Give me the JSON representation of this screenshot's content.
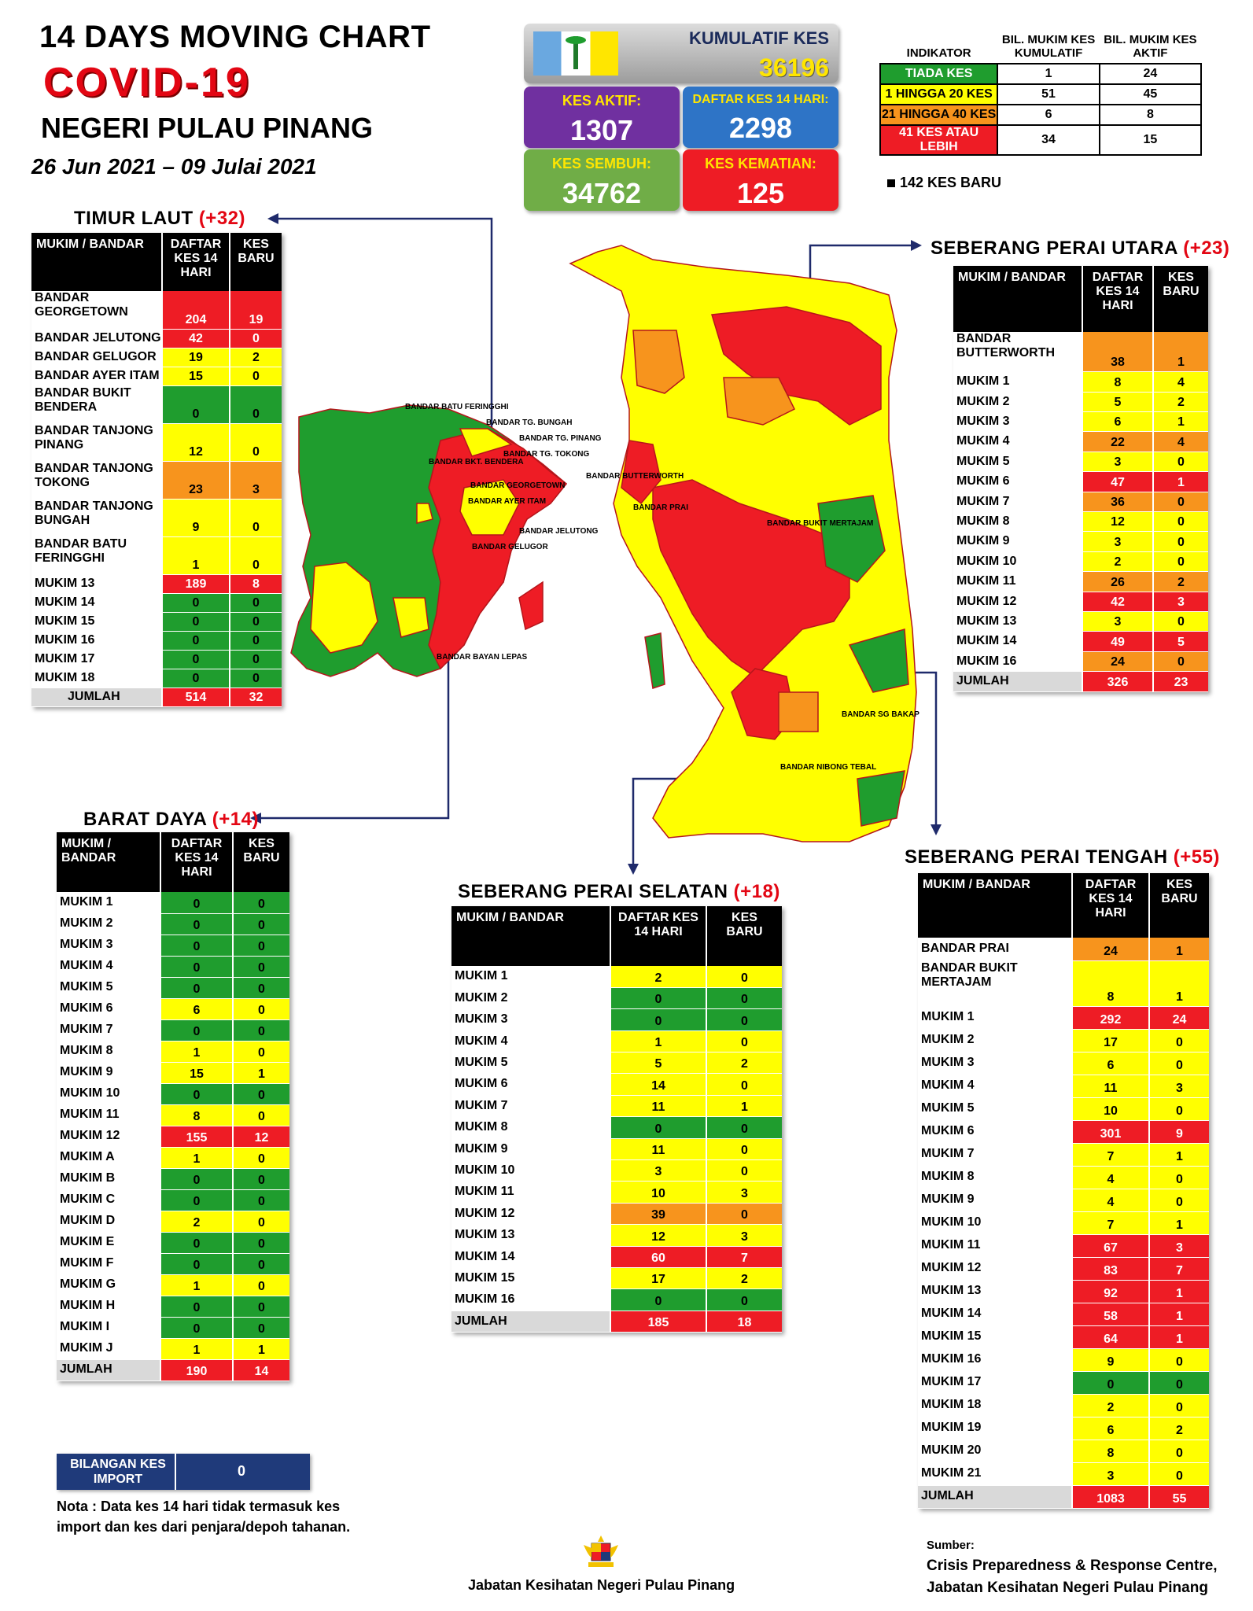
{
  "header": {
    "line1": "14  DAYS MOVING CHART",
    "line2": "COVID-19",
    "line3": "NEGERI PULAU PINANG",
    "dates": "26 Jun 2021 – 09 Julai 2021"
  },
  "stats": {
    "kumulatif_label": "KUMULATIF KES",
    "kumulatif_value": "36196",
    "aktif_label": "KES AKTIF:",
    "aktif_value": "1307",
    "daftar_label": "DAFTAR KES 14 HARI:",
    "daftar_value": "2298",
    "sembuh_label": "KES SEMBUH:",
    "sembuh_value": "34762",
    "kematian_label": "KES KEMATIAN:",
    "kematian_value": "125"
  },
  "indicator": {
    "headers": [
      "INDIKATOR",
      "BIL. MUKIM KES KUMULATIF",
      "BIL. MUKIM KES AKTIF"
    ],
    "rows": [
      {
        "label": "TIADA KES",
        "cum": "1",
        "act": "24",
        "color": "#1f9d2e"
      },
      {
        "label": "1 HINGGA 20 KES",
        "cum": "51",
        "act": "45",
        "color": "#ffff00"
      },
      {
        "label": "21 HINGGA 40 KES",
        "cum": "6",
        "act": "8",
        "color": "#f7941d"
      },
      {
        "label": "41 KES ATAU LEBIH",
        "cum": "34",
        "act": "15",
        "color": "#ee1c25"
      }
    ],
    "new_cases": "142 KES BARU"
  },
  "districts": {
    "timur_laut": {
      "title": "TIMUR LAUT",
      "plus": "(+32)",
      "headers": [
        "MUKIM / BANDAR",
        "DAFTAR KES 14 HARI",
        "KES BARU"
      ],
      "rows": [
        {
          "n": "BANDAR GEORGETOWN",
          "d": "204",
          "b": "19",
          "cd": "R",
          "cb": "R",
          "h": 2
        },
        {
          "n": "BANDAR JELUTONG",
          "d": "42",
          "b": "0",
          "cd": "R",
          "cb": "R",
          "h": 1
        },
        {
          "n": "BANDAR GELUGOR",
          "d": "19",
          "b": "2",
          "cd": "Y",
          "cb": "Y",
          "h": 1
        },
        {
          "n": "BANDAR AYER ITAM",
          "d": "15",
          "b": "0",
          "cd": "Y",
          "cb": "Y",
          "h": 1
        },
        {
          "n": "BANDAR BUKIT BENDERA",
          "d": "0",
          "b": "0",
          "cd": "G",
          "cb": "G",
          "h": 2
        },
        {
          "n": "BANDAR TANJONG PINANG",
          "d": "12",
          "b": "0",
          "cd": "Y",
          "cb": "Y",
          "h": 2
        },
        {
          "n": "BANDAR TANJONG TOKONG",
          "d": "23",
          "b": "3",
          "cd": "O",
          "cb": "O",
          "h": 2
        },
        {
          "n": "BANDAR TANJONG BUNGAH",
          "d": "9",
          "b": "0",
          "cd": "Y",
          "cb": "Y",
          "h": 2
        },
        {
          "n": "BANDAR BATU FERINGGHI",
          "d": "1",
          "b": "0",
          "cd": "Y",
          "cb": "Y",
          "h": 2
        },
        {
          "n": "MUKIM 13",
          "d": "189",
          "b": "8",
          "cd": "R",
          "cb": "R",
          "h": 1
        },
        {
          "n": "MUKIM 14",
          "d": "0",
          "b": "0",
          "cd": "G",
          "cb": "G",
          "h": 1
        },
        {
          "n": "MUKIM 15",
          "d": "0",
          "b": "0",
          "cd": "G",
          "cb": "G",
          "h": 1
        },
        {
          "n": "MUKIM 16",
          "d": "0",
          "b": "0",
          "cd": "G",
          "cb": "G",
          "h": 1
        },
        {
          "n": "MUKIM 17",
          "d": "0",
          "b": "0",
          "cd": "G",
          "cb": "G",
          "h": 1
        },
        {
          "n": "MUKIM 18",
          "d": "0",
          "b": "0",
          "cd": "G",
          "cb": "G",
          "h": 1
        }
      ],
      "total": {
        "n": "JUMLAH",
        "d": "514",
        "b": "32"
      }
    },
    "spu": {
      "title": "SEBERANG PERAI UTARA",
      "plus": "(+23)",
      "headers": [
        "MUKIM / BANDAR",
        "DAFTAR KES 14 HARI",
        "KES BARU"
      ],
      "rows": [
        {
          "n": "BANDAR BUTTERWORTH",
          "d": "38",
          "b": "1",
          "cd": "O",
          "cb": "O",
          "h": 2
        },
        {
          "n": "MUKIM 1",
          "d": "8",
          "b": "4",
          "cd": "Y",
          "cb": "Y",
          "h": 1
        },
        {
          "n": "MUKIM 2",
          "d": "5",
          "b": "2",
          "cd": "Y",
          "cb": "Y",
          "h": 1
        },
        {
          "n": "MUKIM 3",
          "d": "6",
          "b": "1",
          "cd": "Y",
          "cb": "Y",
          "h": 1
        },
        {
          "n": "MUKIM 4",
          "d": "22",
          "b": "4",
          "cd": "O",
          "cb": "O",
          "h": 1
        },
        {
          "n": "MUKIM 5",
          "d": "3",
          "b": "0",
          "cd": "Y",
          "cb": "Y",
          "h": 1
        },
        {
          "n": "MUKIM 6",
          "d": "47",
          "b": "1",
          "cd": "R",
          "cb": "R",
          "h": 1
        },
        {
          "n": "MUKIM 7",
          "d": "36",
          "b": "0",
          "cd": "O",
          "cb": "O",
          "h": 1
        },
        {
          "n": "MUKIM 8",
          "d": "12",
          "b": "0",
          "cd": "Y",
          "cb": "Y",
          "h": 1
        },
        {
          "n": "MUKIM 9",
          "d": "3",
          "b": "0",
          "cd": "Y",
          "cb": "Y",
          "h": 1
        },
        {
          "n": "MUKIM 10",
          "d": "2",
          "b": "0",
          "cd": "Y",
          "cb": "Y",
          "h": 1
        },
        {
          "n": "MUKIM 11",
          "d": "26",
          "b": "2",
          "cd": "O",
          "cb": "O",
          "h": 1
        },
        {
          "n": "MUKIM 12",
          "d": "42",
          "b": "3",
          "cd": "R",
          "cb": "R",
          "h": 1
        },
        {
          "n": "MUKIM 13",
          "d": "3",
          "b": "0",
          "cd": "Y",
          "cb": "Y",
          "h": 1
        },
        {
          "n": "MUKIM 14",
          "d": "49",
          "b": "5",
          "cd": "R",
          "cb": "R",
          "h": 1
        },
        {
          "n": "MUKIM 16",
          "d": "24",
          "b": "0",
          "cd": "O",
          "cb": "O",
          "h": 1
        }
      ],
      "total": {
        "n": "JUMLAH",
        "d": "326",
        "b": "23"
      }
    },
    "barat_daya": {
      "title": "BARAT DAYA",
      "plus": "(+14)",
      "headers": [
        "MUKIM / BANDAR",
        "DAFTAR KES 14 HARI",
        "KES BARU"
      ],
      "rows": [
        {
          "n": "MUKIM 1",
          "d": "0",
          "b": "0",
          "cd": "G",
          "cb": "G",
          "h": 1
        },
        {
          "n": "MUKIM 2",
          "d": "0",
          "b": "0",
          "cd": "G",
          "cb": "G",
          "h": 1
        },
        {
          "n": "MUKIM 3",
          "d": "0",
          "b": "0",
          "cd": "G",
          "cb": "G",
          "h": 1
        },
        {
          "n": "MUKIM 4",
          "d": "0",
          "b": "0",
          "cd": "G",
          "cb": "G",
          "h": 1
        },
        {
          "n": "MUKIM 5",
          "d": "0",
          "b": "0",
          "cd": "G",
          "cb": "G",
          "h": 1
        },
        {
          "n": "MUKIM 6",
          "d": "6",
          "b": "0",
          "cd": "Y",
          "cb": "Y",
          "h": 1
        },
        {
          "n": "MUKIM 7",
          "d": "0",
          "b": "0",
          "cd": "G",
          "cb": "G",
          "h": 1
        },
        {
          "n": "MUKIM 8",
          "d": "1",
          "b": "0",
          "cd": "Y",
          "cb": "Y",
          "h": 1
        },
        {
          "n": "MUKIM 9",
          "d": "15",
          "b": "1",
          "cd": "Y",
          "cb": "Y",
          "h": 1
        },
        {
          "n": "MUKIM 10",
          "d": "0",
          "b": "0",
          "cd": "G",
          "cb": "G",
          "h": 1
        },
        {
          "n": "MUKIM 11",
          "d": "8",
          "b": "0",
          "cd": "Y",
          "cb": "Y",
          "h": 1
        },
        {
          "n": "MUKIM 12",
          "d": "155",
          "b": "12",
          "cd": "R",
          "cb": "R",
          "h": 1
        },
        {
          "n": "MUKIM A",
          "d": "1",
          "b": "0",
          "cd": "Y",
          "cb": "Y",
          "h": 1
        },
        {
          "n": "MUKIM B",
          "d": "0",
          "b": "0",
          "cd": "G",
          "cb": "G",
          "h": 1
        },
        {
          "n": "MUKIM C",
          "d": "0",
          "b": "0",
          "cd": "G",
          "cb": "G",
          "h": 1
        },
        {
          "n": "MUKIM D",
          "d": "2",
          "b": "0",
          "cd": "Y",
          "cb": "Y",
          "h": 1
        },
        {
          "n": "MUKIM E",
          "d": "0",
          "b": "0",
          "cd": "G",
          "cb": "G",
          "h": 1
        },
        {
          "n": "MUKIM F",
          "d": "0",
          "b": "0",
          "cd": "G",
          "cb": "G",
          "h": 1
        },
        {
          "n": "MUKIM G",
          "d": "1",
          "b": "0",
          "cd": "Y",
          "cb": "Y",
          "h": 1
        },
        {
          "n": "MUKIM H",
          "d": "0",
          "b": "0",
          "cd": "G",
          "cb": "G",
          "h": 1
        },
        {
          "n": "MUKIM I",
          "d": "0",
          "b": "0",
          "cd": "G",
          "cb": "G",
          "h": 1
        },
        {
          "n": "MUKIM J",
          "d": "1",
          "b": "1",
          "cd": "Y",
          "cb": "Y",
          "h": 1
        }
      ],
      "total": {
        "n": "JUMLAH",
        "d": "190",
        "b": "14"
      }
    },
    "sps": {
      "title": "SEBERANG PERAI SELATAN",
      "plus": "(+18)",
      "headers": [
        "MUKIM / BANDAR",
        "DAFTAR KES 14 HARI",
        "KES BARU"
      ],
      "rows": [
        {
          "n": "MUKIM 1",
          "d": "2",
          "b": "0",
          "cd": "Y",
          "cb": "Y",
          "h": 1
        },
        {
          "n": "MUKIM 2",
          "d": "0",
          "b": "0",
          "cd": "G",
          "cb": "G",
          "h": 1
        },
        {
          "n": "MUKIM 3",
          "d": "0",
          "b": "0",
          "cd": "G",
          "cb": "G",
          "h": 1
        },
        {
          "n": "MUKIM 4",
          "d": "1",
          "b": "0",
          "cd": "Y",
          "cb": "Y",
          "h": 1
        },
        {
          "n": "MUKIM 5",
          "d": "5",
          "b": "2",
          "cd": "Y",
          "cb": "Y",
          "h": 1
        },
        {
          "n": "MUKIM 6",
          "d": "14",
          "b": "0",
          "cd": "Y",
          "cb": "Y",
          "h": 1
        },
        {
          "n": "MUKIM 7",
          "d": "11",
          "b": "1",
          "cd": "Y",
          "cb": "Y",
          "h": 1
        },
        {
          "n": "MUKIM 8",
          "d": "0",
          "b": "0",
          "cd": "G",
          "cb": "G",
          "h": 1
        },
        {
          "n": "MUKIM 9",
          "d": "11",
          "b": "0",
          "cd": "Y",
          "cb": "Y",
          "h": 1
        },
        {
          "n": "MUKIM 10",
          "d": "3",
          "b": "0",
          "cd": "Y",
          "cb": "Y",
          "h": 1
        },
        {
          "n": "MUKIM 11",
          "d": "10",
          "b": "3",
          "cd": "Y",
          "cb": "Y",
          "h": 1
        },
        {
          "n": "MUKIM 12",
          "d": "39",
          "b": "0",
          "cd": "O",
          "cb": "O",
          "h": 1
        },
        {
          "n": "MUKIM 13",
          "d": "12",
          "b": "3",
          "cd": "Y",
          "cb": "Y",
          "h": 1
        },
        {
          "n": "MUKIM 14",
          "d": "60",
          "b": "7",
          "cd": "R",
          "cb": "R",
          "h": 1
        },
        {
          "n": "MUKIM 15",
          "d": "17",
          "b": "2",
          "cd": "Y",
          "cb": "Y",
          "h": 1
        },
        {
          "n": "MUKIM 16",
          "d": "0",
          "b": "0",
          "cd": "G",
          "cb": "G",
          "h": 1
        }
      ],
      "total": {
        "n": "JUMLAH",
        "d": "185",
        "b": "18"
      }
    },
    "spt": {
      "title": "SEBERANG PERAI TENGAH",
      "plus": "(+55)",
      "headers": [
        "MUKIM / BANDAR",
        "DAFTAR KES 14 HARI",
        "KES BARU"
      ],
      "rows": [
        {
          "n": "BANDAR PRAI",
          "d": "24",
          "b": "1",
          "cd": "O",
          "cb": "O",
          "h": 1
        },
        {
          "n": "BANDAR BUKIT MERTAJAM",
          "d": "8",
          "b": "1",
          "cd": "Y",
          "cb": "Y",
          "h": 2
        },
        {
          "n": "MUKIM 1",
          "d": "292",
          "b": "24",
          "cd": "R",
          "cb": "R",
          "h": 1
        },
        {
          "n": "MUKIM 2",
          "d": "17",
          "b": "0",
          "cd": "Y",
          "cb": "Y",
          "h": 1
        },
        {
          "n": "MUKIM 3",
          "d": "6",
          "b": "0",
          "cd": "Y",
          "cb": "Y",
          "h": 1
        },
        {
          "n": "MUKIM 4",
          "d": "11",
          "b": "3",
          "cd": "Y",
          "cb": "Y",
          "h": 1
        },
        {
          "n": "MUKIM 5",
          "d": "10",
          "b": "0",
          "cd": "Y",
          "cb": "Y",
          "h": 1
        },
        {
          "n": "MUKIM 6",
          "d": "301",
          "b": "9",
          "cd": "R",
          "cb": "R",
          "h": 1
        },
        {
          "n": "MUKIM 7",
          "d": "7",
          "b": "1",
          "cd": "Y",
          "cb": "Y",
          "h": 1
        },
        {
          "n": "MUKIM 8",
          "d": "4",
          "b": "0",
          "cd": "Y",
          "cb": "Y",
          "h": 1
        },
        {
          "n": "MUKIM 9",
          "d": "4",
          "b": "0",
          "cd": "Y",
          "cb": "Y",
          "h": 1
        },
        {
          "n": "MUKIM 10",
          "d": "7",
          "b": "1",
          "cd": "Y",
          "cb": "Y",
          "h": 1
        },
        {
          "n": "MUKIM 11",
          "d": "67",
          "b": "3",
          "cd": "R",
          "cb": "R",
          "h": 1
        },
        {
          "n": "MUKIM 12",
          "d": "83",
          "b": "7",
          "cd": "R",
          "cb": "R",
          "h": 1
        },
        {
          "n": "MUKIM 13",
          "d": "92",
          "b": "1",
          "cd": "R",
          "cb": "R",
          "h": 1
        },
        {
          "n": "MUKIM 14",
          "d": "58",
          "b": "1",
          "cd": "R",
          "cb": "R",
          "h": 1
        },
        {
          "n": "MUKIM 15",
          "d": "64",
          "b": "1",
          "cd": "R",
          "cb": "R",
          "h": 1
        },
        {
          "n": "MUKIM 16",
          "d": "9",
          "b": "0",
          "cd": "Y",
          "cb": "Y",
          "h": 1
        },
        {
          "n": "MUKIM 17",
          "d": "0",
          "b": "0",
          "cd": "G",
          "cb": "G",
          "h": 1
        },
        {
          "n": "MUKIM 18",
          "d": "2",
          "b": "0",
          "cd": "Y",
          "cb": "Y",
          "h": 1
        },
        {
          "n": "MUKIM 19",
          "d": "6",
          "b": "2",
          "cd": "Y",
          "cb": "Y",
          "h": 1
        },
        {
          "n": "MUKIM 20",
          "d": "8",
          "b": "0",
          "cd": "Y",
          "cb": "Y",
          "h": 1
        },
        {
          "n": "MUKIM 21",
          "d": "3",
          "b": "0",
          "cd": "Y",
          "cb": "Y",
          "h": 1
        }
      ],
      "total": {
        "n": "JUMLAH",
        "d": "1083",
        "b": "55"
      }
    }
  },
  "import": {
    "label": "BILANGAN KES IMPORT",
    "value": "0"
  },
  "note": "Nota : Data kes 14 hari tidak termasuk kes import dan kes dari penjara/depoh tahanan.",
  "footer": {
    "center": "Jabatan Kesihatan Negeri Pulau Pinang",
    "source_label": "Sumber:",
    "source_1": "Crisis Preparedness & Response Centre,",
    "source_2": "Jabatan Kesihatan Negeri Pulau Pinang"
  },
  "map_labels": {
    "island": [
      "BANDAR BATU FERINGGHI",
      "BANDAR TG. BUNGAH",
      "BANDAR TG. PINANG",
      "BANDAR TG.  TOKONG",
      "BANDAR BKT. BENDERA",
      "BANDAR GEORGETOWN",
      "BANDAR AYER ITAM",
      "BANDAR JELUTONG",
      "BANDAR GELUGOR",
      "BANDAR BAYAN LEPAS"
    ],
    "mainland": [
      "BANDAR BUTTERWORTH",
      "BANDAR PRAI",
      "BANDAR BUKIT MERTAJAM",
      "BANDAR SG BAKAP",
      "BANDAR NIBONG TEBAL"
    ]
  },
  "colors": {
    "green": "#1f9d2e",
    "yellow": "#ffff00",
    "orange": "#f7941d",
    "red": "#ee1c25",
    "purple": "#7030a0",
    "blue": "#2e74c6",
    "navy": "#1f3a7a"
  }
}
